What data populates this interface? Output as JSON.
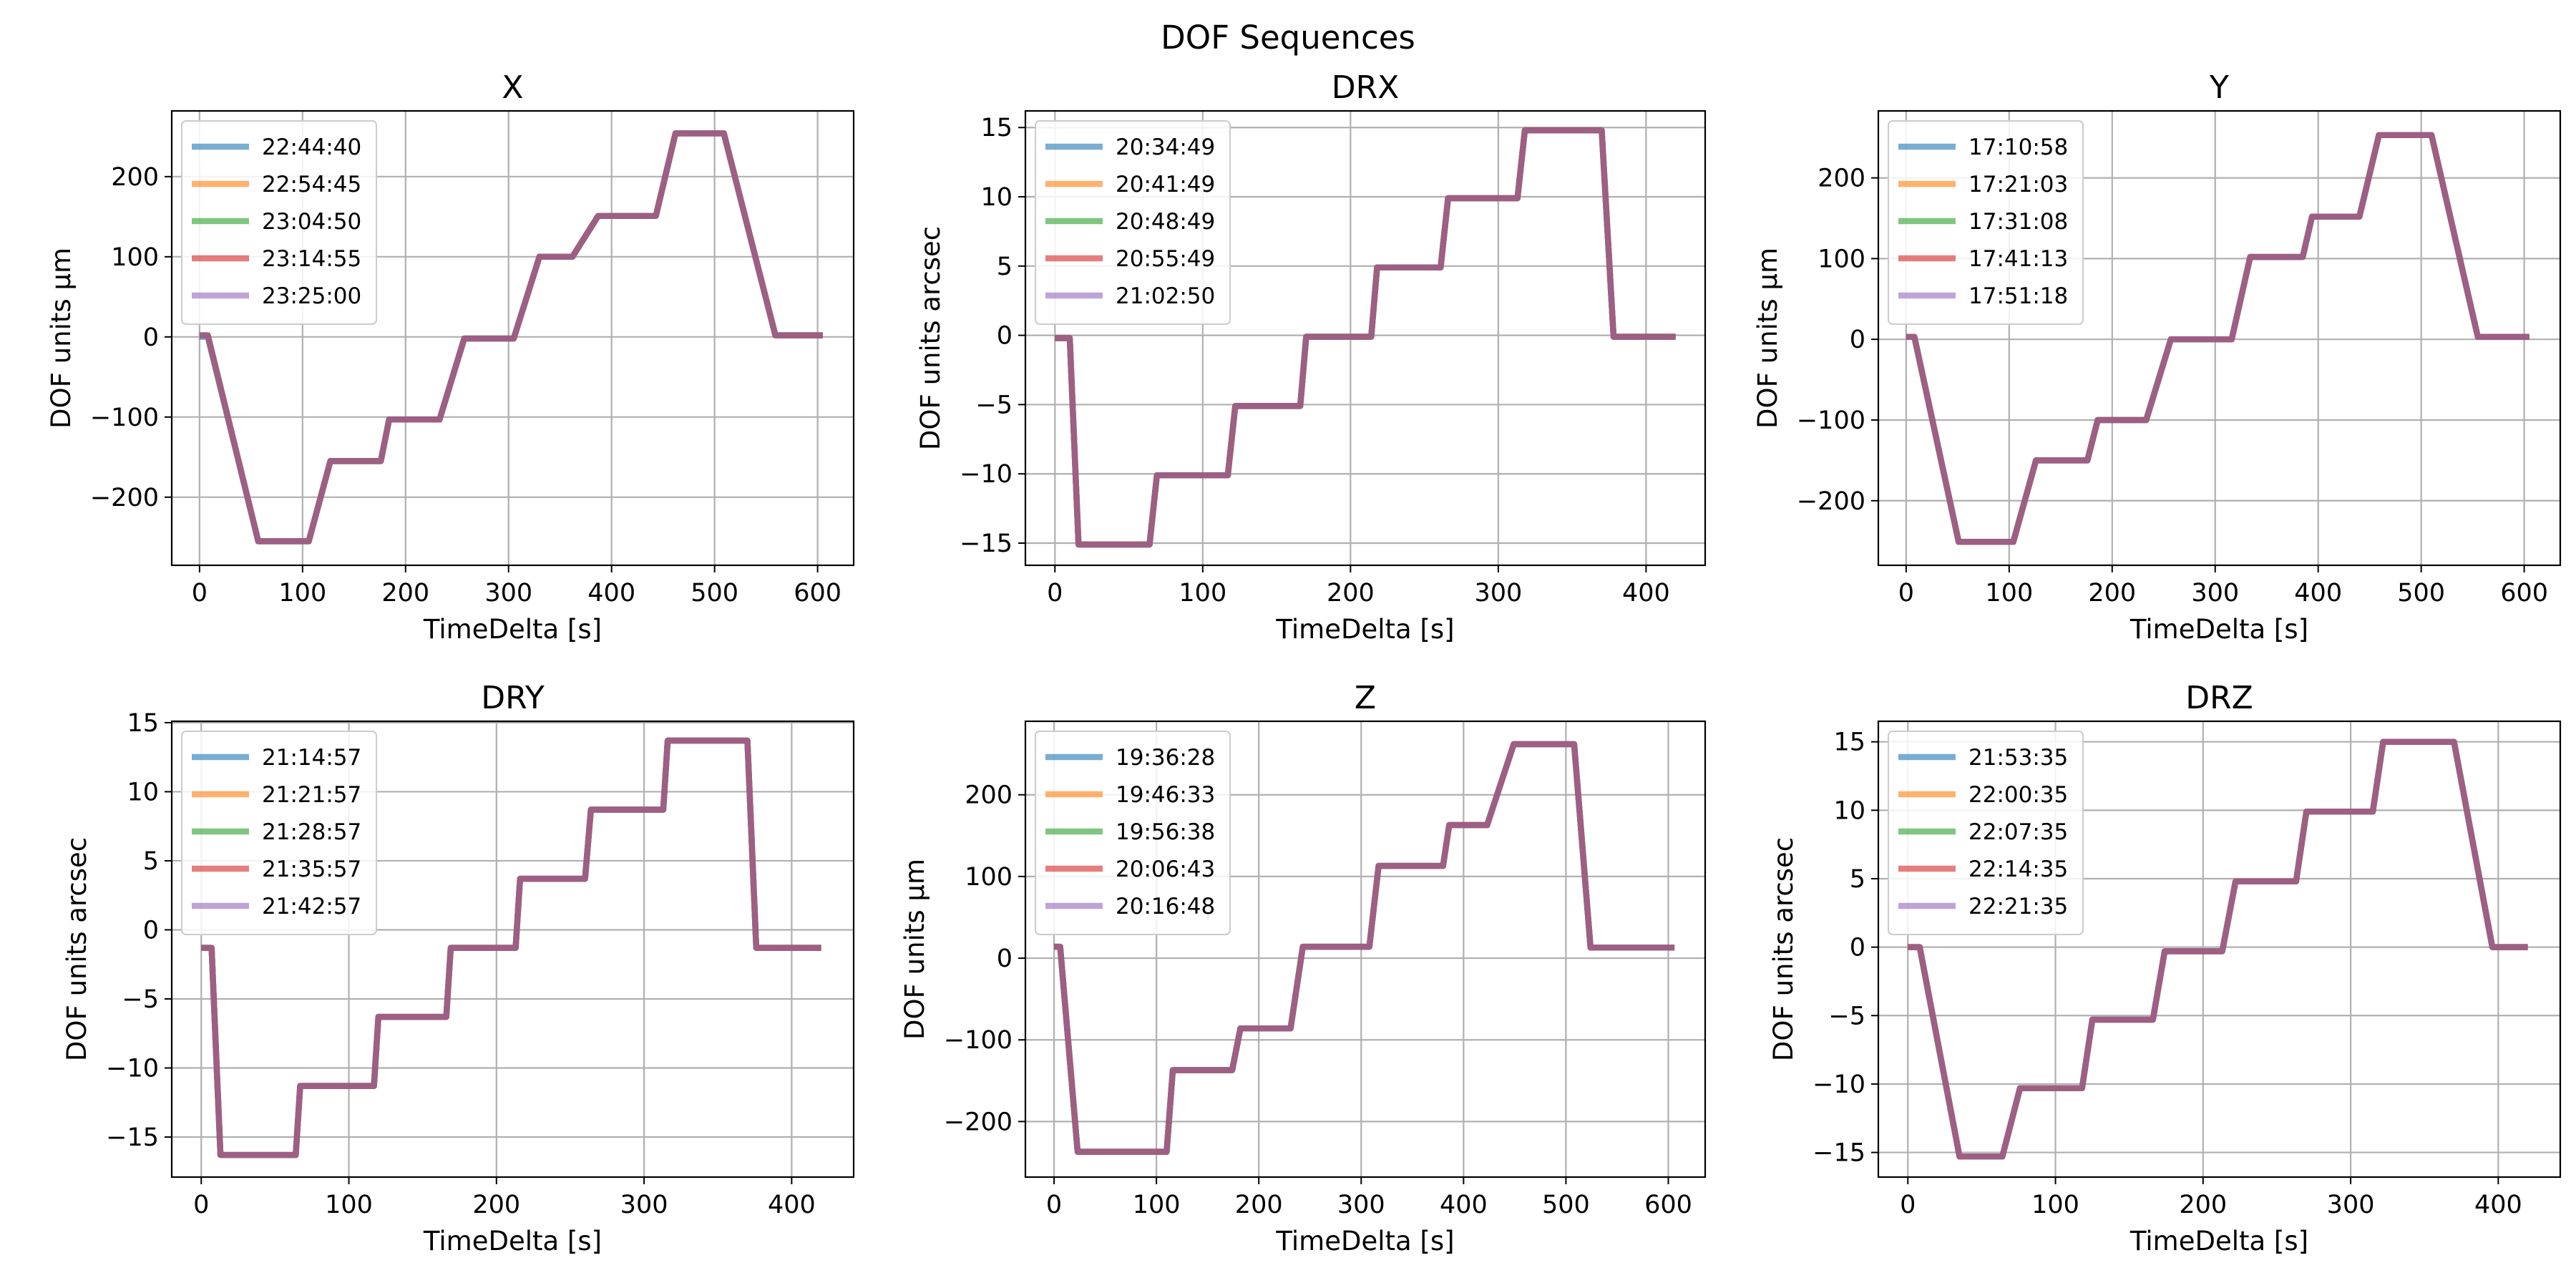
{
  "figure": {
    "suptitle": "DOF Sequences"
  },
  "chart_data": [
    {
      "type": "line",
      "title": "X",
      "xlabel": "TimeDelta [s]",
      "ylabel": "DOF units μm",
      "xlim": [
        -27,
        635
      ],
      "ylim": [
        -285,
        282
      ],
      "xticks": [
        0,
        100,
        200,
        300,
        400,
        500,
        600
      ],
      "yticks": [
        -200,
        -100,
        0,
        100,
        200
      ],
      "grid": true,
      "legend_position": "upper left",
      "x": [
        0,
        8,
        57,
        106,
        127,
        176,
        184,
        233,
        257,
        305,
        330,
        362,
        387,
        422,
        443,
        462,
        509,
        559,
        605
      ],
      "series": [
        {
          "name": "22:44:40",
          "color": "#1f77b4",
          "values": [
            0,
            0,
            -255,
            -255,
            -155,
            -155,
            -103,
            -103,
            -2,
            -2,
            100,
            100,
            151,
            151,
            151,
            254,
            254,
            2,
            2
          ]
        },
        {
          "name": "22:54:45",
          "color": "#ff7f0e",
          "values": [
            2,
            2,
            -255,
            -255,
            -155,
            -155,
            -103,
            -103,
            -2,
            -2,
            100,
            100,
            151,
            151,
            151,
            254,
            254,
            2,
            2
          ]
        },
        {
          "name": "23:04:50",
          "color": "#2ca02c",
          "values": [
            2,
            2,
            -255,
            -255,
            -155,
            -155,
            -103,
            -103,
            -2,
            -2,
            100,
            100,
            151,
            151,
            151,
            254,
            254,
            2,
            2
          ]
        },
        {
          "name": "23:14:55",
          "color": "#d62728",
          "values": [
            2,
            2,
            -255,
            -255,
            -155,
            -155,
            -103,
            -103,
            -2,
            -2,
            100,
            100,
            151,
            151,
            151,
            254,
            254,
            2,
            2
          ]
        },
        {
          "name": "23:25:00",
          "color": "#9467bd",
          "values": [
            2,
            2,
            -255,
            -255,
            -155,
            -155,
            -103,
            -103,
            -2,
            -2,
            100,
            100,
            151,
            151,
            151,
            254,
            254,
            2,
            2
          ]
        }
      ]
    },
    {
      "type": "line",
      "title": "DRX",
      "xlabel": "TimeDelta [s]",
      "ylabel": "DOF units arcsec",
      "xlim": [
        -20,
        440
      ],
      "ylim": [
        -16.6,
        16.2
      ],
      "xticks": [
        0,
        100,
        200,
        300,
        400
      ],
      "yticks": [
        -15,
        -10,
        -5,
        0,
        5,
        10,
        15
      ],
      "grid": true,
      "legend_position": "upper left",
      "x": [
        0,
        10,
        16,
        64,
        69,
        117,
        122,
        166,
        170,
        214,
        218,
        261,
        266,
        313,
        318,
        370,
        378,
        420
      ],
      "series": [
        {
          "name": "20:34:49",
          "color": "#1f77b4",
          "values": [
            -0.2,
            -0.2,
            -15.1,
            -15.1,
            -10.1,
            -10.1,
            -5.1,
            -5.1,
            -0.1,
            -0.1,
            4.9,
            4.9,
            9.9,
            9.9,
            14.8,
            14.8,
            -0.1,
            -0.1
          ]
        },
        {
          "name": "20:41:49",
          "color": "#ff7f0e",
          "values": [
            -0.2,
            -0.2,
            -15.1,
            -15.1,
            -10.1,
            -10.1,
            -5.1,
            -5.1,
            -0.1,
            -0.1,
            4.9,
            4.9,
            9.9,
            9.9,
            14.8,
            14.8,
            -0.1,
            -0.1
          ]
        },
        {
          "name": "20:48:49",
          "color": "#2ca02c",
          "values": [
            -0.2,
            -0.2,
            -15.1,
            -15.1,
            -10.1,
            -10.1,
            -5.1,
            -5.1,
            -0.1,
            -0.1,
            4.9,
            4.9,
            9.9,
            9.9,
            14.8,
            14.8,
            -0.1,
            -0.1
          ]
        },
        {
          "name": "20:55:49",
          "color": "#d62728",
          "values": [
            -0.2,
            -0.2,
            -15.1,
            -15.1,
            -10.1,
            -10.1,
            -5.1,
            -5.1,
            -0.1,
            -0.1,
            4.9,
            4.9,
            9.9,
            9.9,
            14.8,
            14.8,
            -0.1,
            -0.1
          ]
        },
        {
          "name": "21:02:50",
          "color": "#9467bd",
          "values": [
            -0.2,
            -0.2,
            -15.1,
            -15.1,
            -10.1,
            -10.1,
            -5.1,
            -5.1,
            -0.1,
            -0.1,
            4.9,
            4.9,
            9.9,
            9.9,
            14.8,
            14.8,
            -0.1,
            -0.1
          ]
        }
      ]
    },
    {
      "type": "line",
      "title": "Y",
      "xlabel": "TimeDelta [s]",
      "ylabel": "DOF units μm",
      "xlim": [
        -27,
        635
      ],
      "ylim": [
        -280,
        283
      ],
      "xticks": [
        0,
        100,
        200,
        300,
        400,
        500,
        600
      ],
      "yticks": [
        -200,
        -100,
        0,
        100,
        200
      ],
      "grid": true,
      "legend_position": "upper left",
      "x": [
        0,
        8,
        51,
        104,
        126,
        176,
        186,
        233,
        257,
        316,
        334,
        385,
        394,
        434,
        440,
        459,
        510,
        555,
        605
      ],
      "series": [
        {
          "name": "17:10:58",
          "color": "#1f77b4",
          "values": [
            3,
            3,
            -251,
            -251,
            -150,
            -150,
            -100,
            -100,
            0,
            0,
            102,
            102,
            152,
            152,
            152,
            253,
            253,
            3,
            3
          ]
        },
        {
          "name": "17:21:03",
          "color": "#ff7f0e",
          "values": [
            3,
            3,
            -251,
            -251,
            -150,
            -150,
            -100,
            -100,
            0,
            0,
            102,
            102,
            152,
            152,
            152,
            253,
            253,
            3,
            3
          ]
        },
        {
          "name": "17:31:08",
          "color": "#2ca02c",
          "values": [
            3,
            3,
            -251,
            -251,
            -150,
            -150,
            -100,
            -100,
            0,
            0,
            102,
            102,
            152,
            152,
            152,
            253,
            253,
            3,
            3
          ]
        },
        {
          "name": "17:41:13",
          "color": "#d62728",
          "values": [
            3,
            3,
            -251,
            -251,
            -150,
            -150,
            -100,
            -100,
            0,
            0,
            102,
            102,
            152,
            152,
            152,
            253,
            253,
            3,
            3
          ]
        },
        {
          "name": "17:51:18",
          "color": "#9467bd",
          "values": [
            3,
            3,
            -251,
            -251,
            -150,
            -150,
            -100,
            -100,
            0,
            0,
            102,
            102,
            152,
            152,
            152,
            253,
            253,
            3,
            3
          ]
        }
      ]
    },
    {
      "type": "line",
      "title": "DRY",
      "xlabel": "TimeDelta [s]",
      "ylabel": "DOF units arcsec",
      "xlim": [
        -20,
        442
      ],
      "ylim": [
        -17.9,
        15.1
      ],
      "xticks": [
        0,
        100,
        200,
        300,
        400
      ],
      "yticks": [
        -15,
        -10,
        -5,
        0,
        5,
        10,
        15
      ],
      "grid": true,
      "legend_position": "upper left",
      "x": [
        0,
        7,
        13,
        64,
        67,
        117,
        120,
        166,
        169,
        213,
        216,
        260,
        264,
        313,
        316,
        370,
        376,
        420
      ],
      "series": [
        {
          "name": "21:14:57",
          "color": "#1f77b4",
          "values": [
            -1.3,
            -1.3,
            -16.3,
            -16.3,
            -11.3,
            -11.3,
            -6.3,
            -6.3,
            -1.3,
            -1.3,
            3.7,
            3.7,
            8.7,
            8.7,
            13.7,
            13.7,
            -1.3,
            -1.3
          ]
        },
        {
          "name": "21:21:57",
          "color": "#ff7f0e",
          "values": [
            -1.3,
            -1.3,
            -16.3,
            -16.3,
            -11.3,
            -11.3,
            -6.3,
            -6.3,
            -1.3,
            -1.3,
            3.7,
            3.7,
            8.7,
            8.7,
            13.7,
            13.7,
            -1.3,
            -1.3
          ]
        },
        {
          "name": "21:28:57",
          "color": "#2ca02c",
          "values": [
            -1.3,
            -1.3,
            -16.3,
            -16.3,
            -11.3,
            -11.3,
            -6.3,
            -6.3,
            -1.3,
            -1.3,
            3.7,
            3.7,
            8.7,
            8.7,
            13.7,
            13.7,
            -1.3,
            -1.3
          ]
        },
        {
          "name": "21:35:57",
          "color": "#d62728",
          "values": [
            -1.3,
            -1.3,
            -16.3,
            -16.3,
            -11.3,
            -11.3,
            -6.3,
            -6.3,
            -1.3,
            -1.3,
            3.7,
            3.7,
            8.7,
            8.7,
            13.7,
            13.7,
            -1.3,
            -1.3
          ]
        },
        {
          "name": "21:42:57",
          "color": "#9467bd",
          "values": [
            -1.3,
            -1.3,
            -16.3,
            -16.3,
            -11.3,
            -11.3,
            -6.3,
            -6.3,
            -1.3,
            -1.3,
            3.7,
            3.7,
            8.7,
            8.7,
            13.7,
            13.7,
            -1.3,
            -1.3
          ]
        }
      ]
    },
    {
      "type": "line",
      "title": "Z",
      "xlabel": "TimeDelta [s]",
      "ylabel": "DOF units μm",
      "xlim": [
        -28,
        636
      ],
      "ylim": [
        -268,
        290
      ],
      "xticks": [
        0,
        100,
        200,
        300,
        400,
        500,
        600
      ],
      "yticks": [
        -200,
        -100,
        0,
        100,
        200
      ],
      "grid": true,
      "legend_position": "upper left",
      "x": [
        0,
        6,
        23,
        110,
        116,
        174,
        182,
        231,
        243,
        308,
        317,
        380,
        386,
        423,
        449,
        508,
        524,
        606
      ],
      "series": [
        {
          "name": "19:36:28",
          "color": "#1f77b4",
          "values": [
            14,
            14,
            -237,
            -237,
            -137,
            -137,
            -86,
            -86,
            14,
            14,
            113,
            113,
            163,
            163,
            262,
            262,
            13,
            13
          ]
        },
        {
          "name": "19:46:33",
          "color": "#ff7f0e",
          "values": [
            14,
            14,
            -237,
            -237,
            -137,
            -137,
            -86,
            -86,
            14,
            14,
            113,
            113,
            163,
            163,
            262,
            262,
            13,
            13
          ]
        },
        {
          "name": "19:56:38",
          "color": "#2ca02c",
          "values": [
            14,
            14,
            -237,
            -237,
            -137,
            -137,
            -86,
            -86,
            14,
            14,
            113,
            113,
            163,
            163,
            262,
            262,
            13,
            13
          ]
        },
        {
          "name": "20:06:43",
          "color": "#d62728",
          "values": [
            14,
            14,
            -237,
            -237,
            -137,
            -137,
            -86,
            -86,
            14,
            14,
            113,
            113,
            163,
            163,
            262,
            262,
            13,
            13
          ]
        },
        {
          "name": "20:16:48",
          "color": "#9467bd",
          "values": [
            14,
            14,
            -237,
            -237,
            -137,
            -137,
            -86,
            -86,
            14,
            14,
            113,
            113,
            163,
            163,
            262,
            262,
            13,
            13
          ]
        }
      ]
    },
    {
      "type": "line",
      "title": "DRZ",
      "xlabel": "TimeDelta [s]",
      "ylabel": "DOF units arcsec",
      "xlim": [
        -20,
        442
      ],
      "ylim": [
        -16.8,
        16.5
      ],
      "xticks": [
        0,
        100,
        200,
        300,
        400
      ],
      "yticks": [
        -15,
        -10,
        -5,
        0,
        5,
        10,
        15
      ],
      "grid": true,
      "legend_position": "upper left",
      "x": [
        0,
        8,
        35,
        64,
        76,
        118,
        125,
        166,
        174,
        213,
        222,
        263,
        270,
        315,
        322,
        370,
        396,
        420
      ],
      "series": [
        {
          "name": "21:53:35",
          "color": "#1f77b4",
          "values": [
            0,
            0,
            -15.3,
            -15.3,
            -10.3,
            -10.3,
            -5.3,
            -5.3,
            -0.3,
            -0.3,
            4.8,
            4.8,
            9.9,
            9.9,
            15.0,
            15.0,
            0,
            0
          ]
        },
        {
          "name": "22:00:35",
          "color": "#ff7f0e",
          "values": [
            0,
            0,
            -15.3,
            -15.3,
            -10.3,
            -10.3,
            -5.3,
            -5.3,
            -0.3,
            -0.3,
            4.8,
            4.8,
            9.9,
            9.9,
            15.0,
            15.0,
            0,
            0
          ]
        },
        {
          "name": "22:07:35",
          "color": "#2ca02c",
          "values": [
            0,
            0,
            -15.3,
            -15.3,
            -10.3,
            -10.3,
            -5.3,
            -5.3,
            -0.3,
            -0.3,
            4.8,
            4.8,
            9.9,
            9.9,
            15.0,
            15.0,
            0,
            0
          ]
        },
        {
          "name": "22:14:35",
          "color": "#d62728",
          "values": [
            0,
            0,
            -15.3,
            -15.3,
            -10.3,
            -10.3,
            -5.3,
            -5.3,
            -0.3,
            -0.3,
            4.8,
            4.8,
            9.9,
            9.9,
            15.0,
            15.0,
            0,
            0
          ]
        },
        {
          "name": "22:21:35",
          "color": "#9467bd",
          "values": [
            0,
            0,
            -15.3,
            -15.3,
            -10.3,
            -10.3,
            -5.3,
            -5.3,
            -0.3,
            -0.3,
            4.8,
            4.8,
            9.9,
            9.9,
            15.0,
            15.0,
            0,
            0
          ]
        }
      ]
    }
  ]
}
